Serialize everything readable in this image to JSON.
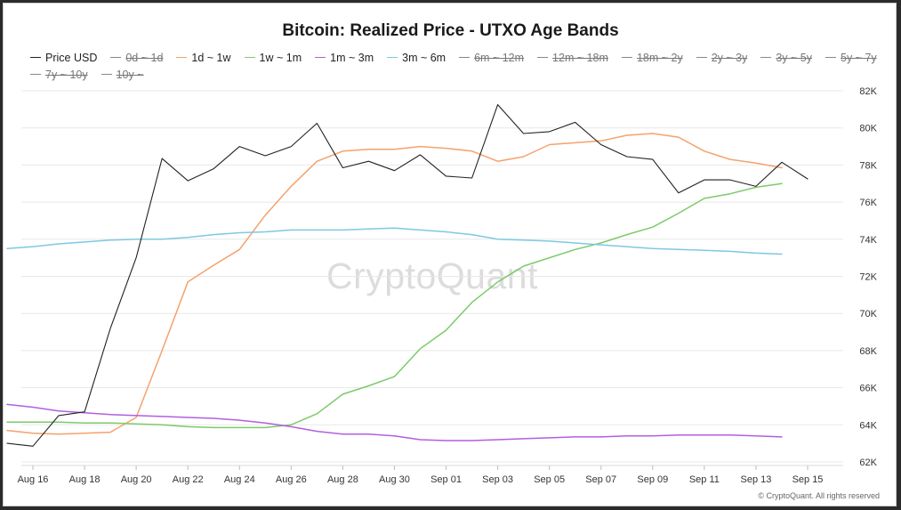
{
  "colors": {
    "price": "#222222",
    "band_1d_1w": "#f4a26b",
    "band_1w_1m": "#7dca6a",
    "band_1m_3m": "#b25fe0",
    "band_3m_6m": "#7ec8e3",
    "grid": "#e8e8e8"
  },
  "watermark": "CryptoQuant",
  "copyright": "© CryptoQuant. All rights reserved",
  "chart_data": {
    "type": "line",
    "title": "Bitcoin: Realized Price - UTXO Age Bands",
    "xlabel": "",
    "ylabel": "",
    "x_tick_labels": [
      "Aug 16",
      "Aug 18",
      "Aug 20",
      "Aug 22",
      "Aug 24",
      "Aug 26",
      "Aug 28",
      "Aug 30",
      "Sep 01",
      "Sep 03",
      "Sep 05",
      "Sep 07",
      "Sep 09",
      "Sep 11",
      "Sep 13",
      "Sep 15"
    ],
    "y_tick_labels": [
      "62K",
      "64K",
      "66K",
      "68K",
      "70K",
      "72K",
      "74K",
      "76K",
      "78K",
      "80K",
      "82K"
    ],
    "x_range": [
      "2024-08-15",
      "2024-09-16"
    ],
    "ylim": [
      62000,
      82000
    ],
    "y_axis_side": "right",
    "grid": "horizontal",
    "legend_position": "top",
    "legend": [
      {
        "name": "Price USD",
        "visible": true,
        "color": "#222222"
      },
      {
        "name": "0d ~ 1d",
        "visible": false,
        "color": "#888888"
      },
      {
        "name": "1d ~ 1w",
        "visible": true,
        "color": "#f4a26b"
      },
      {
        "name": "1w ~ 1m",
        "visible": true,
        "color": "#7dca6a"
      },
      {
        "name": "1m ~ 3m",
        "visible": true,
        "color": "#b25fe0"
      },
      {
        "name": "3m ~ 6m",
        "visible": true,
        "color": "#7ec8e3"
      },
      {
        "name": "6m ~ 12m",
        "visible": false,
        "color": "#888888"
      },
      {
        "name": "12m ~ 18m",
        "visible": false,
        "color": "#888888"
      },
      {
        "name": "18m ~ 2y",
        "visible": false,
        "color": "#888888"
      },
      {
        "name": "2y ~ 3y",
        "visible": false,
        "color": "#888888"
      },
      {
        "name": "3y ~ 5y",
        "visible": false,
        "color": "#888888"
      },
      {
        "name": "5y ~ 7y",
        "visible": false,
        "color": "#888888"
      },
      {
        "name": "7y ~ 10y",
        "visible": false,
        "color": "#888888"
      },
      {
        "name": "10y ~",
        "visible": false,
        "color": "#888888"
      }
    ],
    "series": [
      {
        "name": "Price USD",
        "color": "#222222",
        "points": [
          [
            "2024-08-15",
            63000
          ],
          [
            "2024-08-16",
            62850
          ],
          [
            "2024-08-17",
            64500
          ],
          [
            "2024-08-18",
            64700
          ],
          [
            "2024-08-19",
            69200
          ],
          [
            "2024-08-20",
            73000
          ],
          [
            "2024-08-21",
            78350
          ],
          [
            "2024-08-22",
            77150
          ],
          [
            "2024-08-23",
            77800
          ],
          [
            "2024-08-24",
            79000
          ],
          [
            "2024-08-25",
            78500
          ],
          [
            "2024-08-26",
            79000
          ],
          [
            "2024-08-27",
            80250
          ],
          [
            "2024-08-28",
            77850
          ],
          [
            "2024-08-29",
            78200
          ],
          [
            "2024-08-30",
            77700
          ],
          [
            "2024-08-31",
            78550
          ],
          [
            "2024-09-01",
            77400
          ],
          [
            "2024-09-02",
            77300
          ],
          [
            "2024-09-03",
            81250
          ],
          [
            "2024-09-04",
            79700
          ],
          [
            "2024-09-05",
            79800
          ],
          [
            "2024-09-06",
            80300
          ],
          [
            "2024-09-07",
            79100
          ],
          [
            "2024-09-08",
            78450
          ],
          [
            "2024-09-09",
            78300
          ],
          [
            "2024-09-10",
            76500
          ],
          [
            "2024-09-11",
            77200
          ],
          [
            "2024-09-12",
            77200
          ],
          [
            "2024-09-13",
            76850
          ],
          [
            "2024-09-14",
            78150
          ],
          [
            "2024-09-15",
            77250
          ]
        ]
      },
      {
        "name": "1d ~ 1w",
        "color": "#f4a26b",
        "points": [
          [
            "2024-08-15",
            63700
          ],
          [
            "2024-08-16",
            63550
          ],
          [
            "2024-08-17",
            63500
          ],
          [
            "2024-08-18",
            63550
          ],
          [
            "2024-08-19",
            63600
          ],
          [
            "2024-08-20",
            64400
          ],
          [
            "2024-08-21",
            68000
          ],
          [
            "2024-08-22",
            71700
          ],
          [
            "2024-08-23",
            72600
          ],
          [
            "2024-08-24",
            73450
          ],
          [
            "2024-08-25",
            75300
          ],
          [
            "2024-08-26",
            76850
          ],
          [
            "2024-08-27",
            78200
          ],
          [
            "2024-08-28",
            78750
          ],
          [
            "2024-08-29",
            78850
          ],
          [
            "2024-08-30",
            78850
          ],
          [
            "2024-08-31",
            79000
          ],
          [
            "2024-09-01",
            78900
          ],
          [
            "2024-09-02",
            78750
          ],
          [
            "2024-09-03",
            78200
          ],
          [
            "2024-09-04",
            78450
          ],
          [
            "2024-09-05",
            79100
          ],
          [
            "2024-09-06",
            79200
          ],
          [
            "2024-09-07",
            79300
          ],
          [
            "2024-09-08",
            79600
          ],
          [
            "2024-09-09",
            79700
          ],
          [
            "2024-09-10",
            79500
          ],
          [
            "2024-09-11",
            78750
          ],
          [
            "2024-09-12",
            78300
          ],
          [
            "2024-09-13",
            78100
          ],
          [
            "2024-09-14",
            77850
          ]
        ]
      },
      {
        "name": "1w ~ 1m",
        "color": "#7dca6a",
        "points": [
          [
            "2024-08-15",
            64150
          ],
          [
            "2024-08-16",
            64150
          ],
          [
            "2024-08-17",
            64150
          ],
          [
            "2024-08-18",
            64100
          ],
          [
            "2024-08-19",
            64100
          ],
          [
            "2024-08-20",
            64050
          ],
          [
            "2024-08-21",
            64000
          ],
          [
            "2024-08-22",
            63900
          ],
          [
            "2024-08-23",
            63850
          ],
          [
            "2024-08-24",
            63850
          ],
          [
            "2024-08-25",
            63850
          ],
          [
            "2024-08-26",
            64000
          ],
          [
            "2024-08-27",
            64600
          ],
          [
            "2024-08-28",
            65650
          ],
          [
            "2024-08-29",
            66100
          ],
          [
            "2024-08-30",
            66600
          ],
          [
            "2024-08-31",
            68100
          ],
          [
            "2024-09-01",
            69100
          ],
          [
            "2024-09-02",
            70600
          ],
          [
            "2024-09-03",
            71700
          ],
          [
            "2024-09-04",
            72550
          ],
          [
            "2024-09-05",
            73000
          ],
          [
            "2024-09-06",
            73450
          ],
          [
            "2024-09-07",
            73800
          ],
          [
            "2024-09-08",
            74250
          ],
          [
            "2024-09-09",
            74650
          ],
          [
            "2024-09-10",
            75400
          ],
          [
            "2024-09-11",
            76200
          ],
          [
            "2024-09-12",
            76450
          ],
          [
            "2024-09-13",
            76800
          ],
          [
            "2024-09-14",
            77000
          ]
        ]
      },
      {
        "name": "1m ~ 3m",
        "color": "#b25fe0",
        "points": [
          [
            "2024-08-15",
            65100
          ],
          [
            "2024-08-16",
            64950
          ],
          [
            "2024-08-17",
            64750
          ],
          [
            "2024-08-18",
            64650
          ],
          [
            "2024-08-19",
            64550
          ],
          [
            "2024-08-20",
            64500
          ],
          [
            "2024-08-21",
            64450
          ],
          [
            "2024-08-22",
            64400
          ],
          [
            "2024-08-23",
            64350
          ],
          [
            "2024-08-24",
            64250
          ],
          [
            "2024-08-25",
            64100
          ],
          [
            "2024-08-26",
            63900
          ],
          [
            "2024-08-27",
            63650
          ],
          [
            "2024-08-28",
            63500
          ],
          [
            "2024-08-29",
            63500
          ],
          [
            "2024-08-30",
            63400
          ],
          [
            "2024-08-31",
            63200
          ],
          [
            "2024-09-01",
            63150
          ],
          [
            "2024-09-02",
            63150
          ],
          [
            "2024-09-03",
            63200
          ],
          [
            "2024-09-04",
            63250
          ],
          [
            "2024-09-05",
            63300
          ],
          [
            "2024-09-06",
            63350
          ],
          [
            "2024-09-07",
            63350
          ],
          [
            "2024-09-08",
            63400
          ],
          [
            "2024-09-09",
            63400
          ],
          [
            "2024-09-10",
            63450
          ],
          [
            "2024-09-11",
            63450
          ],
          [
            "2024-09-12",
            63450
          ],
          [
            "2024-09-13",
            63400
          ],
          [
            "2024-09-14",
            63350
          ]
        ]
      },
      {
        "name": "3m ~ 6m",
        "color": "#7ec8e3",
        "points": [
          [
            "2024-08-15",
            73500
          ],
          [
            "2024-08-16",
            73600
          ],
          [
            "2024-08-17",
            73750
          ],
          [
            "2024-08-18",
            73850
          ],
          [
            "2024-08-19",
            73950
          ],
          [
            "2024-08-20",
            74000
          ],
          [
            "2024-08-21",
            74000
          ],
          [
            "2024-08-22",
            74100
          ],
          [
            "2024-08-23",
            74250
          ],
          [
            "2024-08-24",
            74350
          ],
          [
            "2024-08-25",
            74400
          ],
          [
            "2024-08-26",
            74500
          ],
          [
            "2024-08-27",
            74500
          ],
          [
            "2024-08-28",
            74500
          ],
          [
            "2024-08-29",
            74550
          ],
          [
            "2024-08-30",
            74600
          ],
          [
            "2024-08-31",
            74500
          ],
          [
            "2024-09-01",
            74400
          ],
          [
            "2024-09-02",
            74250
          ],
          [
            "2024-09-03",
            74000
          ],
          [
            "2024-09-04",
            73950
          ],
          [
            "2024-09-05",
            73900
          ],
          [
            "2024-09-06",
            73800
          ],
          [
            "2024-09-07",
            73700
          ],
          [
            "2024-09-08",
            73600
          ],
          [
            "2024-09-09",
            73500
          ],
          [
            "2024-09-10",
            73450
          ],
          [
            "2024-09-11",
            73400
          ],
          [
            "2024-09-12",
            73350
          ],
          [
            "2024-09-13",
            73250
          ],
          [
            "2024-09-14",
            73200
          ]
        ]
      }
    ]
  }
}
